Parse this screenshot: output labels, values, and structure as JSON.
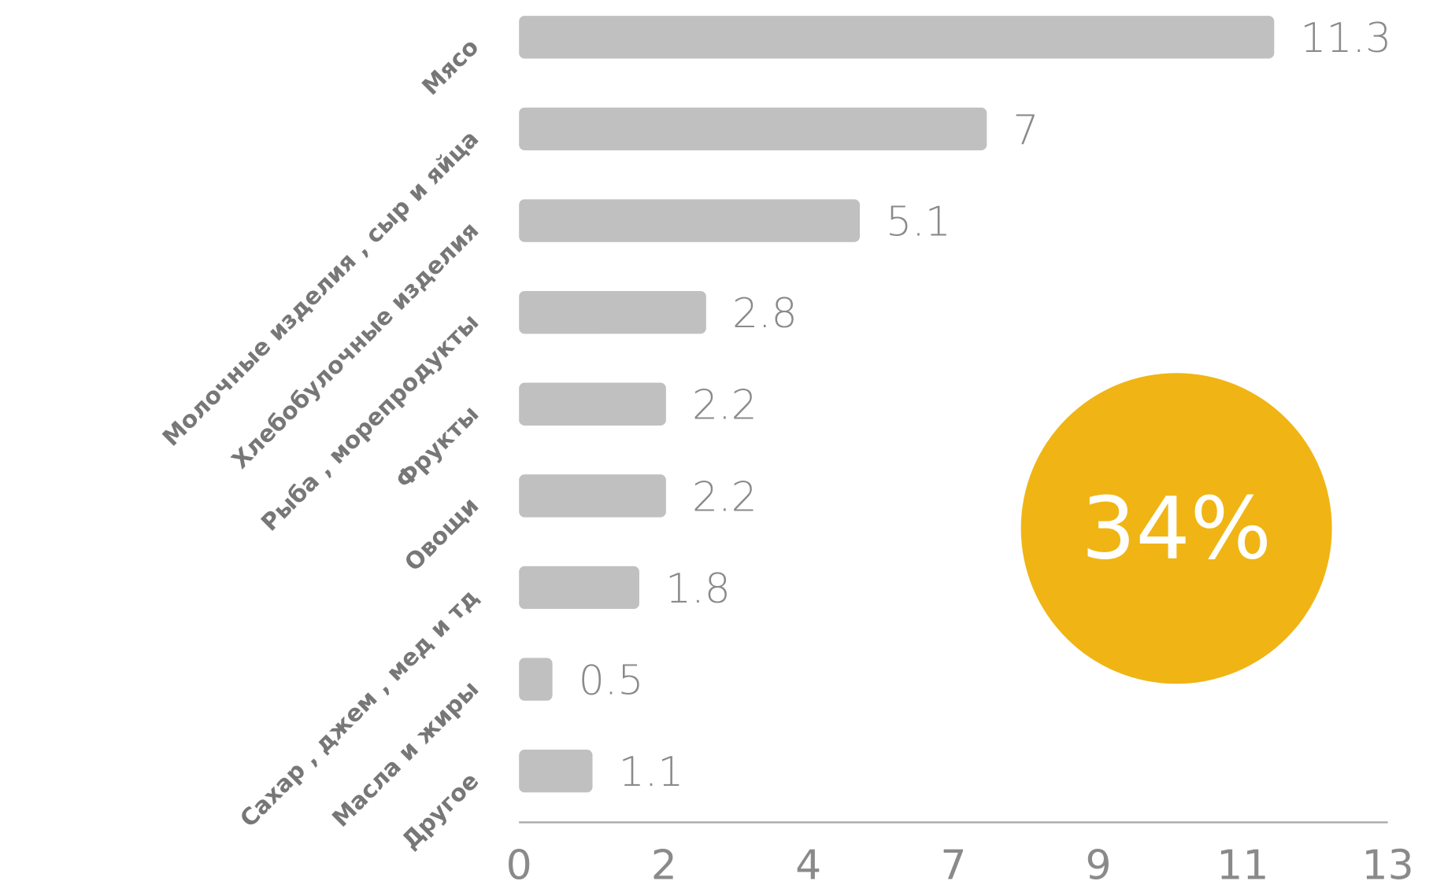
{
  "chart_data": {
    "type": "bar",
    "orientation": "horizontal",
    "categories": [
      "Мясо",
      "Молочные изделия , сыр и яйца",
      "Хлебобулочные изделия",
      "Рыба , морепродукты",
      "Фрукты",
      "Овощи",
      "Сахар , джем , мед и тд",
      "Масла и жиры",
      "Другое"
    ],
    "values": [
      11.3,
      7,
      5.1,
      2.8,
      2.2,
      2.2,
      1.8,
      0.5,
      1.1
    ],
    "color": "#c0c0c0",
    "xlim": [
      0,
      13
    ],
    "xticks": [
      0,
      {
        "value": 2.17,
        "label": "2"
      },
      {
        "value": 4.33,
        "label": "4"
      },
      {
        "value": 6.5,
        "label": "7"
      },
      {
        "value": 8.67,
        "label": "9"
      },
      {
        "value": 10.83,
        "label": "11"
      },
      13
    ],
    "annotation": "34%",
    "annotation_color": "#f0b514"
  }
}
